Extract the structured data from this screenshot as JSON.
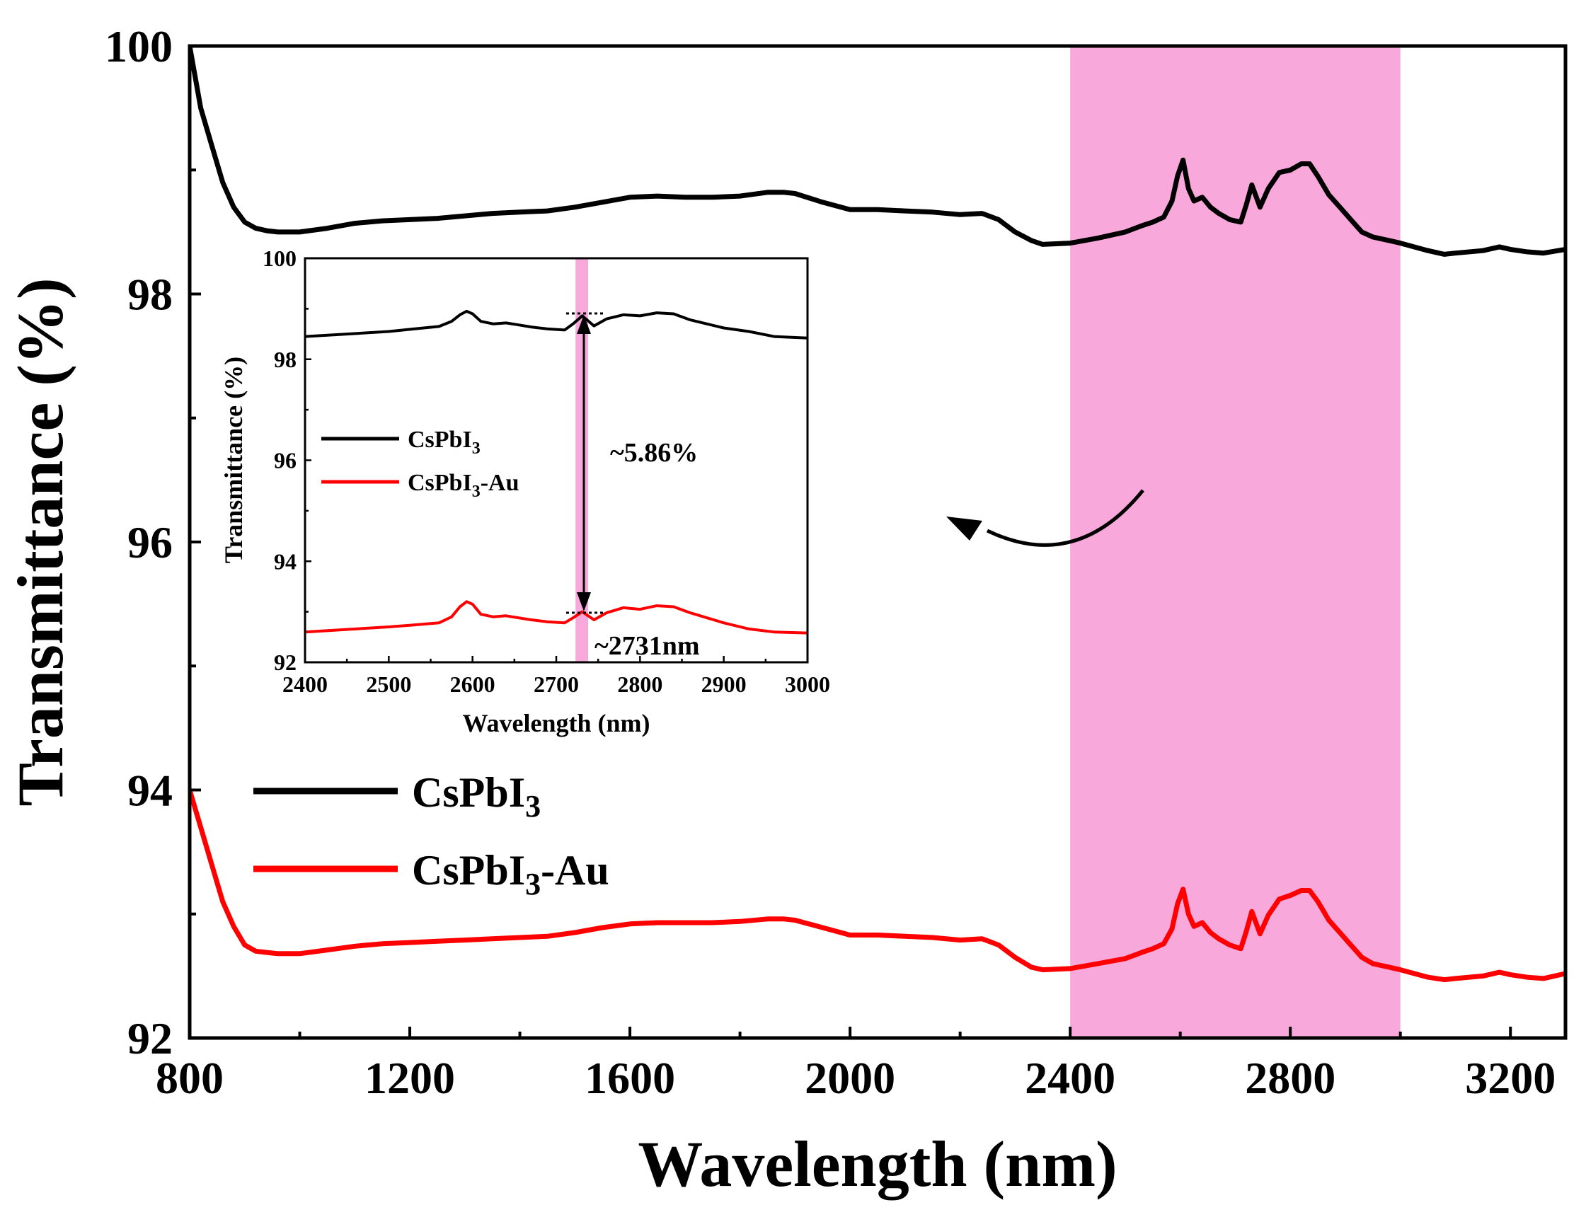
{
  "chart_data": [
    {
      "type": "line",
      "panel": "main",
      "xlabel": "Wavelength (nm)",
      "ylabel": "Transmittance (%)",
      "xlim": [
        800,
        3300
      ],
      "ylim": [
        92,
        100
      ],
      "xticks": [
        800,
        1200,
        1600,
        2000,
        2400,
        2800,
        3200
      ],
      "yticks": [
        92,
        94,
        96,
        98,
        100
      ],
      "highlight_band": [
        2400,
        3000
      ],
      "highlight_color": "#f9a8dc",
      "legend": {
        "position": "center-left",
        "entries": [
          {
            "base": "CsPbI",
            "sub": "3",
            "suffix": "",
            "color": "#000000"
          },
          {
            "base": "CsPbI",
            "sub": "3",
            "suffix": "-Au",
            "color": "#ff0000"
          }
        ]
      },
      "series": [
        {
          "name": "CsPbI3",
          "color": "#000000",
          "x": [
            800,
            820,
            840,
            860,
            880,
            900,
            920,
            940,
            960,
            1000,
            1050,
            1100,
            1150,
            1200,
            1250,
            1300,
            1350,
            1400,
            1450,
            1500,
            1550,
            1600,
            1650,
            1700,
            1750,
            1800,
            1850,
            1880,
            1900,
            1950,
            2000,
            2050,
            2100,
            2150,
            2200,
            2240,
            2270,
            2300,
            2330,
            2350,
            2400,
            2450,
            2500,
            2530,
            2550,
            2570,
            2585,
            2595,
            2605,
            2615,
            2625,
            2640,
            2655,
            2670,
            2690,
            2710,
            2720,
            2730,
            2745,
            2760,
            2780,
            2800,
            2820,
            2835,
            2850,
            2870,
            2890,
            2910,
            2930,
            2950,
            2980,
            3000,
            3050,
            3080,
            3100,
            3150,
            3180,
            3200,
            3230,
            3260,
            3300
          ],
          "y": [
            100,
            99.5,
            99.2,
            98.9,
            98.7,
            98.58,
            98.53,
            98.51,
            98.5,
            98.5,
            98.53,
            98.57,
            98.59,
            98.6,
            98.61,
            98.63,
            98.65,
            98.66,
            98.67,
            98.7,
            98.74,
            98.78,
            98.79,
            98.78,
            98.78,
            98.79,
            98.82,
            98.82,
            98.81,
            98.74,
            98.68,
            98.68,
            98.67,
            98.66,
            98.64,
            98.65,
            98.6,
            98.5,
            98.43,
            98.4,
            98.41,
            98.45,
            98.5,
            98.55,
            98.58,
            98.62,
            98.75,
            98.95,
            99.08,
            98.85,
            98.75,
            98.78,
            98.7,
            98.65,
            98.6,
            98.58,
            98.72,
            98.88,
            98.7,
            98.85,
            98.98,
            99.0,
            99.05,
            99.05,
            98.95,
            98.8,
            98.7,
            98.6,
            98.5,
            98.46,
            98.43,
            98.41,
            98.35,
            98.32,
            98.33,
            98.35,
            98.38,
            98.36,
            98.34,
            98.33,
            98.36
          ]
        },
        {
          "name": "CsPbI3-Au",
          "color": "#ff0000",
          "x": [
            800,
            820,
            840,
            860,
            880,
            900,
            920,
            940,
            960,
            1000,
            1050,
            1100,
            1150,
            1200,
            1250,
            1300,
            1350,
            1400,
            1450,
            1500,
            1550,
            1600,
            1650,
            1700,
            1750,
            1800,
            1850,
            1880,
            1900,
            1950,
            2000,
            2050,
            2100,
            2150,
            2200,
            2240,
            2270,
            2300,
            2330,
            2350,
            2400,
            2450,
            2500,
            2530,
            2550,
            2570,
            2585,
            2595,
            2605,
            2615,
            2625,
            2640,
            2655,
            2670,
            2690,
            2710,
            2720,
            2730,
            2745,
            2760,
            2780,
            2800,
            2820,
            2835,
            2850,
            2870,
            2890,
            2910,
            2930,
            2950,
            2980,
            3000,
            3050,
            3080,
            3100,
            3150,
            3180,
            3200,
            3230,
            3260,
            3300
          ],
          "y": [
            94.0,
            93.7,
            93.4,
            93.1,
            92.9,
            92.75,
            92.7,
            92.69,
            92.68,
            92.68,
            92.71,
            92.74,
            92.76,
            92.77,
            92.78,
            92.79,
            92.8,
            92.81,
            92.82,
            92.85,
            92.89,
            92.92,
            92.93,
            92.93,
            92.93,
            92.94,
            92.96,
            92.96,
            92.95,
            92.89,
            92.83,
            92.83,
            92.82,
            92.81,
            92.79,
            92.8,
            92.75,
            92.65,
            92.57,
            92.55,
            92.56,
            92.6,
            92.64,
            92.69,
            92.72,
            92.76,
            92.88,
            93.08,
            93.2,
            93.0,
            92.9,
            92.93,
            92.85,
            92.8,
            92.75,
            92.72,
            92.86,
            93.02,
            92.84,
            92.99,
            93.12,
            93.15,
            93.19,
            93.19,
            93.1,
            92.95,
            92.85,
            92.75,
            92.65,
            92.6,
            92.57,
            92.55,
            92.49,
            92.47,
            92.48,
            92.5,
            92.53,
            92.51,
            92.49,
            92.48,
            92.52
          ]
        }
      ],
      "annotations": []
    },
    {
      "type": "line",
      "panel": "inset",
      "xlabel": "Wavelength (nm)",
      "ylabel": "Transmittance (%)",
      "xlim": [
        2400,
        3000
      ],
      "ylim": [
        92,
        100
      ],
      "xticks": [
        2400,
        2500,
        2600,
        2700,
        2800,
        2900,
        3000
      ],
      "yticks": [
        92,
        94,
        96,
        98,
        100
      ],
      "highlight_band": [
        2723,
        2738
      ],
      "highlight_color": "#f9a8dc",
      "legend": {
        "position": "center-left",
        "entries": [
          {
            "base": "CsPbI",
            "sub": "3",
            "suffix": "",
            "color": "#000000"
          },
          {
            "base": "CsPbI",
            "sub": "3",
            "suffix": "-Au",
            "color": "#ff0000"
          }
        ]
      },
      "series": [
        {
          "name": "CsPbI3",
          "color": "#000000",
          "x": [
            2400,
            2450,
            2500,
            2530,
            2560,
            2575,
            2585,
            2593,
            2600,
            2610,
            2625,
            2640,
            2655,
            2670,
            2690,
            2710,
            2720,
            2731,
            2745,
            2760,
            2780,
            2800,
            2820,
            2840,
            2860,
            2880,
            2900,
            2930,
            2960,
            3000
          ],
          "y": [
            98.45,
            98.5,
            98.55,
            98.6,
            98.65,
            98.75,
            98.88,
            98.95,
            98.9,
            98.75,
            98.7,
            98.72,
            98.68,
            98.64,
            98.6,
            98.58,
            98.7,
            98.86,
            98.66,
            98.8,
            98.88,
            98.86,
            98.92,
            98.9,
            98.78,
            98.7,
            98.62,
            98.55,
            98.45,
            98.42
          ]
        },
        {
          "name": "CsPbI3-Au",
          "color": "#ff0000",
          "x": [
            2400,
            2450,
            2500,
            2530,
            2560,
            2575,
            2585,
            2593,
            2600,
            2610,
            2625,
            2640,
            2655,
            2670,
            2690,
            2710,
            2720,
            2731,
            2745,
            2760,
            2780,
            2800,
            2820,
            2840,
            2860,
            2880,
            2900,
            2930,
            2960,
            3000
          ],
          "y": [
            92.6,
            92.65,
            92.7,
            92.74,
            92.78,
            92.9,
            93.1,
            93.2,
            93.15,
            92.95,
            92.9,
            92.92,
            92.88,
            92.84,
            92.8,
            92.78,
            92.88,
            93.0,
            92.84,
            92.98,
            93.08,
            93.05,
            93.12,
            93.1,
            92.98,
            92.88,
            92.78,
            92.66,
            92.6,
            92.58
          ]
        }
      ],
      "annotations": [
        {
          "text": "~5.86%"
        },
        {
          "text": "~2731nm"
        }
      ]
    }
  ]
}
